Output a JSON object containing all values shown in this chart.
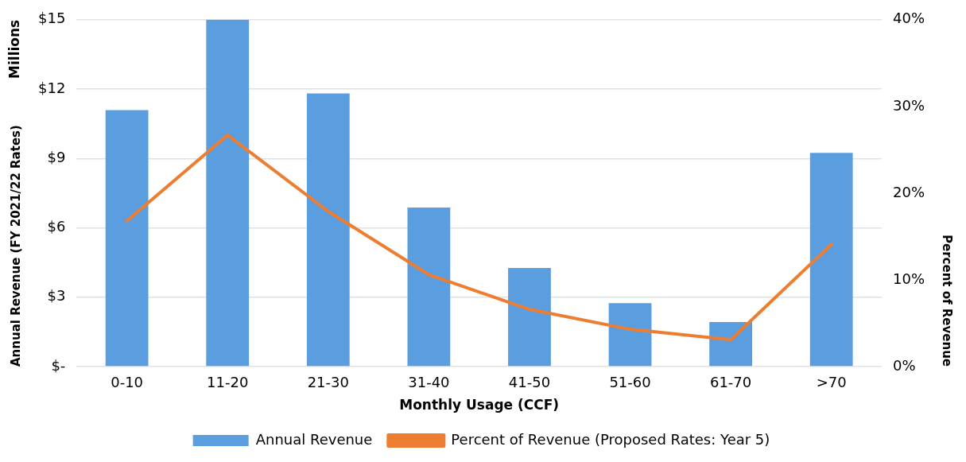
{
  "chart_data": {
    "type": "bar",
    "xlabel": "Monthly Usage (CCF)",
    "ylabel": "Annual Revenue (FY 2021/22 Rates)",
    "y2label": "Percent of Revenue",
    "annotations": [
      "Millions"
    ],
    "categories": [
      "0-10",
      "11-20",
      "21-30",
      "31-40",
      "41-50",
      "51-60",
      "61-70",
      ">70"
    ],
    "series": [
      {
        "name": "Annual Revenue",
        "color": "#5a9ee0",
        "values": [
          11.09,
          15.0,
          11.81,
          6.88,
          4.26,
          2.74,
          1.93,
          9.24
        ]
      },
      {
        "name": "Percent of Revenue (Proposed Rates: Year 5)",
        "type": "line",
        "axis": "y2",
        "color": "#ed7d31",
        "values": [
          16.8,
          26.7,
          17.9,
          10.6,
          6.6,
          4.3,
          3.1,
          14.1
        ]
      }
    ],
    "ylim": [
      0,
      15
    ],
    "yticks": [
      {
        "value": 0,
        "label": "$-"
      },
      {
        "value": 3,
        "label": "$3"
      },
      {
        "value": 6,
        "label": "$6"
      },
      {
        "value": 9,
        "label": "$9"
      },
      {
        "value": 12,
        "label": "$12"
      },
      {
        "value": 15,
        "label": "$15"
      }
    ],
    "y2lim": [
      0,
      40
    ],
    "y2ticks": [
      {
        "value": 0,
        "label": "0%"
      },
      {
        "value": 10,
        "label": "10%"
      },
      {
        "value": 20,
        "label": "20%"
      },
      {
        "value": 30,
        "label": "30%"
      },
      {
        "value": 40,
        "label": "40%"
      }
    ],
    "grid": "y",
    "legend": "bottom",
    "marker": "none",
    "line_style": "solid"
  }
}
